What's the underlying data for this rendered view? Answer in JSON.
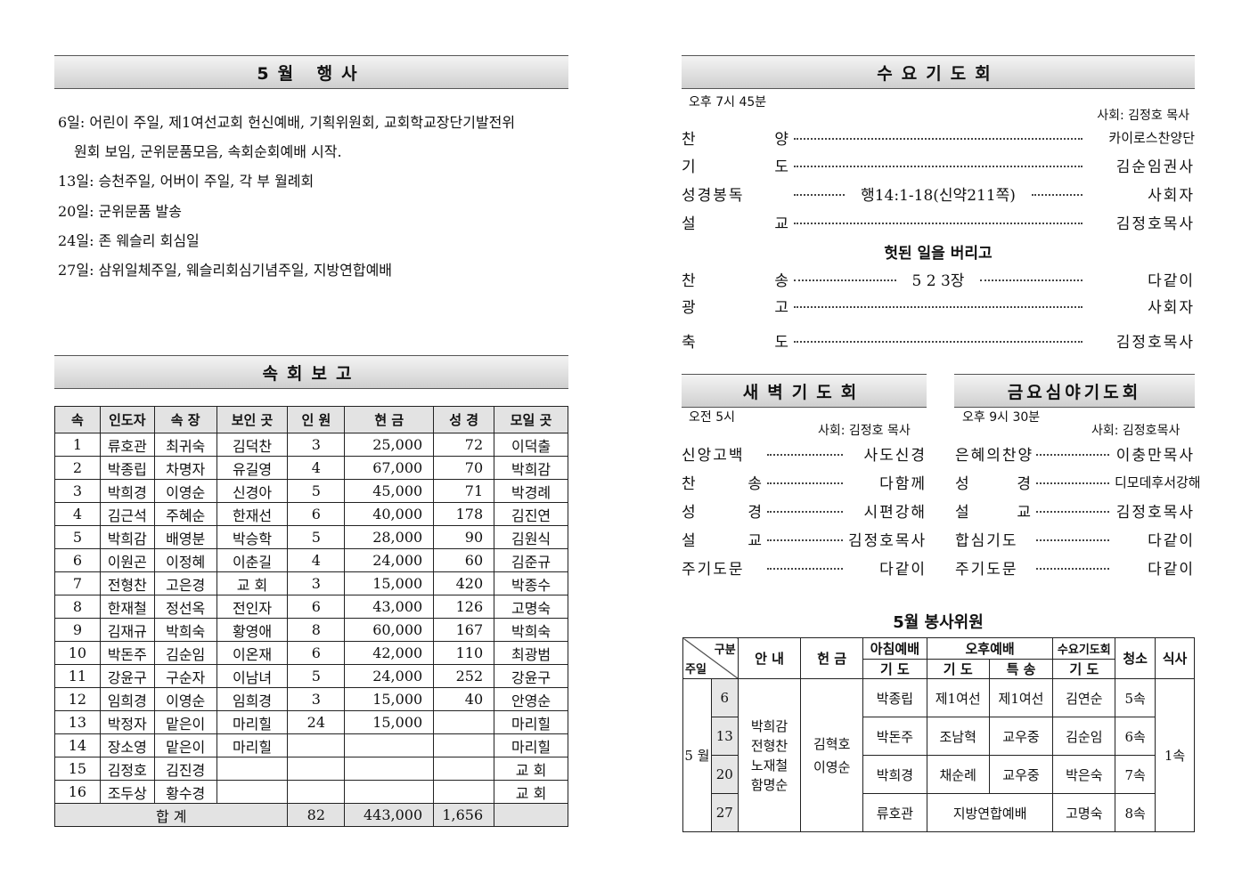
{
  "events": {
    "title": "5월 행사",
    "lines": [
      "6일: 어린이 주일, 제1여선교회 헌신예배, 기획위원회, 교회학교장단기발전위",
      "원회 보임, 군위문품모음, 속회순회예배 시작.",
      "13일: 승천주일, 어버이 주일, 각 부 월례회",
      "20일: 군위문품 발송",
      "24일: 존 웨슬리 회심일",
      "27일: 삼위일체주일, 웨슬리회심기념주일, 지방연합예배"
    ]
  },
  "report": {
    "title": "속회보고",
    "headers": [
      "속",
      "인도자",
      "속 장",
      "보인 곳",
      "인 원",
      "현 금",
      "성 경",
      "모일 곳"
    ],
    "rows": [
      [
        "1",
        "류호관",
        "최귀숙",
        "김덕찬",
        "3",
        "25,000",
        "72",
        "이덕출"
      ],
      [
        "2",
        "박종립",
        "차명자",
        "유길영",
        "4",
        "67,000",
        "70",
        "박희감"
      ],
      [
        "3",
        "박희경",
        "이영순",
        "신경아",
        "5",
        "45,000",
        "71",
        "박경례"
      ],
      [
        "4",
        "김근석",
        "주혜순",
        "한재선",
        "6",
        "40,000",
        "178",
        "김진연"
      ],
      [
        "5",
        "박희감",
        "배영분",
        "박승학",
        "5",
        "28,000",
        "90",
        "김원식"
      ],
      [
        "6",
        "이원곤",
        "이정혜",
        "이춘길",
        "4",
        "24,000",
        "60",
        "김준규"
      ],
      [
        "7",
        "전형찬",
        "고은경",
        "교  회",
        "3",
        "15,000",
        "420",
        "박종수"
      ],
      [
        "8",
        "한재철",
        "정선옥",
        "전인자",
        "6",
        "43,000",
        "126",
        "고명숙"
      ],
      [
        "9",
        "김재규",
        "박희숙",
        "황영애",
        "8",
        "60,000",
        "167",
        "박희숙"
      ],
      [
        "10",
        "박돈주",
        "김순임",
        "이온재",
        "6",
        "42,000",
        "110",
        "최광범"
      ],
      [
        "11",
        "강윤구",
        "구순자",
        "이남녀",
        "5",
        "24,000",
        "252",
        "강윤구"
      ],
      [
        "12",
        "임희경",
        "이영순",
        "임희경",
        "3",
        "15,000",
        "40",
        "안영순"
      ],
      [
        "13",
        "박정자",
        "맡은이",
        "마리힐",
        "24",
        "15,000",
        "",
        "마리힐"
      ],
      [
        "14",
        "장소영",
        "맡은이",
        "마리힐",
        "",
        "",
        "",
        "마리힐"
      ],
      [
        "15",
        "김정호",
        "김진경",
        "",
        "",
        "",
        "",
        "교  회"
      ],
      [
        "16",
        "조두상",
        "황수경",
        "",
        "",
        "",
        "",
        "교  회"
      ]
    ],
    "total": {
      "label": "합   계",
      "people": "82",
      "offering": "443,000",
      "bible": "1,656"
    }
  },
  "wednesday": {
    "title": "수요기도회",
    "time": "오후 7시 45분",
    "host": "사회: 김정호 목사",
    "items": [
      {
        "label": "찬양",
        "value": "카이로스찬양단"
      },
      {
        "label": "기도",
        "value": "김순임권사"
      },
      {
        "label": "성경봉독",
        "middle": "행14:1-18(신약211쪽)",
        "value": "사회자"
      },
      {
        "label": "설교",
        "value": "김정호목사"
      }
    ],
    "sermon_title": "헛된 일을 버리고",
    "items2": [
      {
        "label": "찬송",
        "middle": "5 2 3장",
        "value": "다같이"
      },
      {
        "label": "광고",
        "value": "사회자"
      },
      {
        "label": "축도",
        "value": "김정호목사"
      }
    ]
  },
  "dawn": {
    "title": "새벽기도회",
    "time": "오전 5시",
    "host": "사회: 김정호 목사",
    "items": [
      {
        "label": "신앙고백",
        "value": "사도신경"
      },
      {
        "label": "찬송",
        "value": "다함께"
      },
      {
        "label": "성경",
        "value": "시편강해"
      },
      {
        "label": "설교",
        "value": "김정호목사"
      },
      {
        "label": "주기도문",
        "value": "다같이"
      }
    ]
  },
  "friday": {
    "title": "금요심야기도회",
    "time": "오후 9시 30분",
    "host": "사회: 김정호목사",
    "items": [
      {
        "label": "은혜의찬양",
        "value": "이충만목사"
      },
      {
        "label": "성경",
        "value": "디모데후서강해"
      },
      {
        "label": "설교",
        "value": "김정호목사"
      },
      {
        "label": "합심기도",
        "value": "다같이"
      },
      {
        "label": "주기도문",
        "value": "다같이"
      }
    ]
  },
  "service": {
    "title": "5월 봉사위원",
    "h_category": "구분",
    "h_week": "주일",
    "h_guide": "안 내",
    "h_offering": "헌 금",
    "h_morning": "아침예배",
    "h_afternoon": "오후예배",
    "h_wed": "수요기도회",
    "h_clean": "청소",
    "h_meal": "식사",
    "h_prayer": "기 도",
    "h_special": "특 송",
    "month": "5 월",
    "guides": "박희감 전형찬 노재철 함명순",
    "offering": "김혁호 이영순",
    "meal": "1속",
    "weeks": [
      {
        "day": "6",
        "morning": "박종립",
        "pm_prayer": "제1여선",
        "pm_special": "제1여선",
        "wed": "김연순",
        "clean": "5속"
      },
      {
        "day": "13",
        "morning": "박돈주",
        "pm_prayer": "조남혁",
        "pm_special": "교우중",
        "wed": "김순임",
        "clean": "6속"
      },
      {
        "day": "20",
        "morning": "박희경",
        "pm_prayer": "채순례",
        "pm_special": "교우중",
        "wed": "박은숙",
        "clean": "7속"
      },
      {
        "day": "27",
        "morning": "류호관",
        "pm_merged": "지방연합예배",
        "wed": "고명숙",
        "clean": "8속"
      }
    ]
  }
}
